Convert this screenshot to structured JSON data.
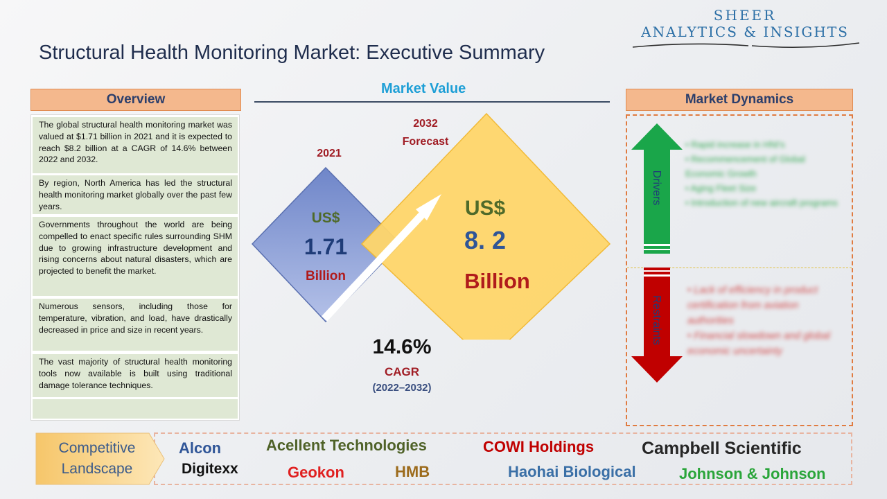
{
  "title": "Structural Health Monitoring Market: Executive Summary",
  "logo": {
    "line1": "SHEER",
    "line2": "ANALYTICS & INSIGHTS"
  },
  "overview": {
    "heading": "Overview",
    "paragraphs": [
      "The global structural health monitoring market was valued at $1.71 billion in 2021 and it is expected to reach $8.2 billion at a CAGR of 14.6% between 2022 and 2032.",
      "By region, North America has led the structural health monitoring market globally over the past few years.",
      "Governments throughout the world are being compelled to enact specific rules surrounding SHM due to growing infrastructure development and rising concerns about natural disasters, which are projected to benefit the market.",
      "Numerous sensors, including those for temperature, vibration, and load, have drastically decreased in price and size in recent years.",
      "The vast majority of structural health monitoring tools now available is built using traditional damage tolerance techniques."
    ]
  },
  "market_value": {
    "heading": "Market Value",
    "year_2021": "2021",
    "value_2021": {
      "currency": "US$",
      "amount": "1.71",
      "unit": "Billion"
    },
    "year_2032": "2032",
    "forecast_label": "Forecast",
    "value_2032": {
      "currency": "US$",
      "amount": "8. 2",
      "unit": "Billion"
    },
    "cagr_value": "14.6%",
    "cagr_label": "CAGR",
    "cagr_period": "(2022–2032)"
  },
  "market_dynamics": {
    "heading": "Market Dynamics",
    "drivers_label": "Drivers",
    "drivers": [
      "Rapid increase in HNI's",
      "Recommencement of Global Economic Growth",
      "Aging Fleet Size",
      "Introduction of new aircraft programs"
    ],
    "restraints_label": "Restraints",
    "restraints": [
      "Lack of efficiency in product certification from aviation authorities",
      "Financial slowdown and global economic uncertainty"
    ]
  },
  "competitive_landscape": {
    "label_line1": "Competitive",
    "label_line2": "Landscape",
    "companies": [
      {
        "name": "Alcon",
        "color": "#2f5597"
      },
      {
        "name": "Acellent Technologies",
        "color": "#4f6228"
      },
      {
        "name": "COWI Holdings",
        "color": "#c00000"
      },
      {
        "name": "Campbell Scientific",
        "color": "#262626"
      },
      {
        "name": "Digitexx",
        "color": "#111111"
      },
      {
        "name": "Geokon",
        "color": "#e02020"
      },
      {
        "name": "HMB",
        "color": "#9c6b1c"
      },
      {
        "name": "Haohai Biological",
        "color": "#3a6fa6"
      },
      {
        "name": "Johnson & Johnson",
        "color": "#2aa53a"
      }
    ]
  },
  "colors": {
    "title": "#1f2d4d",
    "section_fill": "#f4b88d",
    "overview_para_fill": "#dfe8d4",
    "diamond_small": "#8fa2d4",
    "diamond_large": "#ffd66b",
    "drivers_arrow": "#1aa64a",
    "restraints_arrow": "#c00000"
  }
}
